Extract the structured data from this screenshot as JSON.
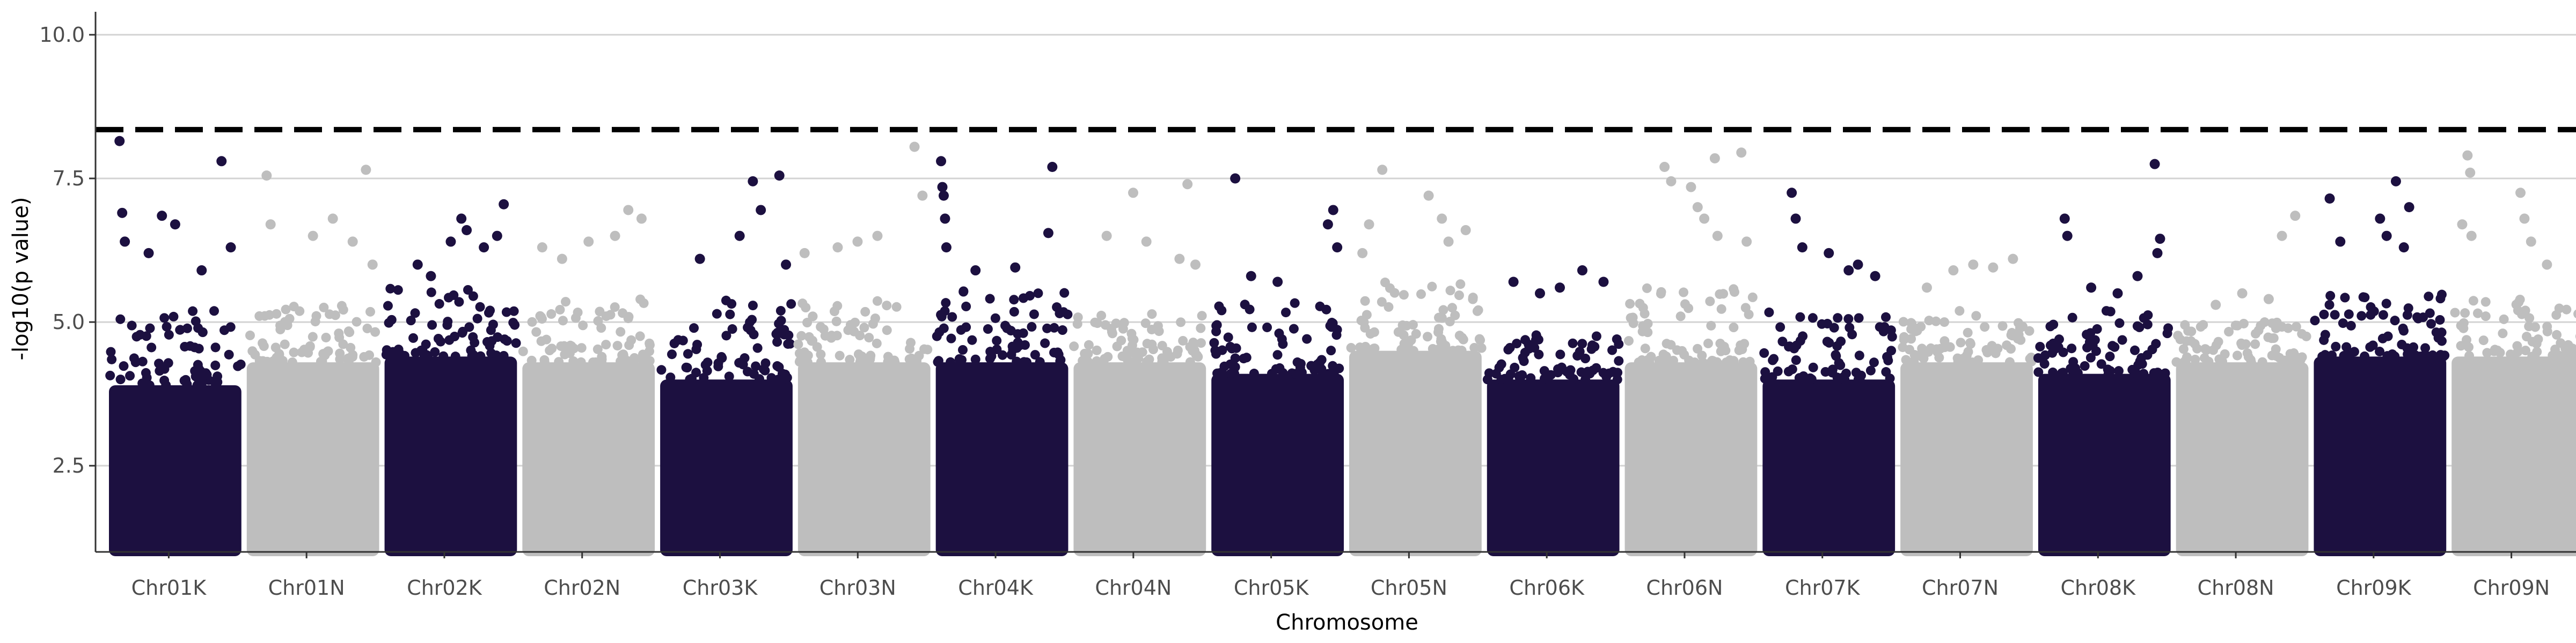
{
  "chart_data": {
    "type": "scatter",
    "title": "",
    "xlabel": "Chromosome",
    "ylabel": "-log10(p value)",
    "ylim": [
      1.0,
      10.4
    ],
    "yticks": [
      2.5,
      5.0,
      7.5,
      10.0
    ],
    "ytick_labels": [
      "2.5",
      "5.0",
      "7.5",
      "10.0"
    ],
    "grid": "horizontal major lines",
    "legend": "none",
    "threshold": {
      "value": 8.35,
      "style": "dashed",
      "color": "#000000"
    },
    "colors": {
      "odd": "#1c1040",
      "even": "#bebebe"
    },
    "categories": [
      "Chr01K",
      "Chr01N",
      "Chr02K",
      "Chr02N",
      "Chr03K",
      "Chr03N",
      "Chr04K",
      "Chr04N",
      "Chr05K",
      "Chr05N",
      "Chr06K",
      "Chr06N",
      "Chr07K",
      "Chr07N",
      "Chr08K",
      "Chr08N",
      "Chr09K",
      "Chr09N"
    ],
    "series": [
      {
        "chromosome": "Chr01K",
        "dense_max": 3.9,
        "cloud_max": 5.2,
        "points": [
          [
            0.08,
            8.15
          ],
          [
            0.1,
            6.9
          ],
          [
            0.12,
            6.4
          ],
          [
            0.3,
            6.2
          ],
          [
            0.4,
            6.85
          ],
          [
            0.5,
            6.7
          ],
          [
            0.85,
            7.8
          ],
          [
            0.92,
            6.3
          ],
          [
            0.7,
            5.9
          ]
        ]
      },
      {
        "chromosome": "Chr01N",
        "dense_max": 4.3,
        "cloud_max": 5.3,
        "points": [
          [
            0.15,
            7.55
          ],
          [
            0.18,
            6.7
          ],
          [
            0.5,
            6.5
          ],
          [
            0.65,
            6.8
          ],
          [
            0.8,
            6.4
          ],
          [
            0.9,
            7.65
          ],
          [
            0.95,
            6.0
          ]
        ]
      },
      {
        "chromosome": "Chr02K",
        "dense_max": 4.4,
        "cloud_max": 5.6,
        "points": [
          [
            0.25,
            6.0
          ],
          [
            0.35,
            5.8
          ],
          [
            0.5,
            6.4
          ],
          [
            0.58,
            6.8
          ],
          [
            0.62,
            6.6
          ],
          [
            0.75,
            6.3
          ],
          [
            0.85,
            6.5
          ],
          [
            0.9,
            7.05
          ]
        ]
      },
      {
        "chromosome": "Chr02N",
        "dense_max": 4.3,
        "cloud_max": 5.4,
        "points": [
          [
            0.15,
            6.3
          ],
          [
            0.3,
            6.1
          ],
          [
            0.5,
            6.4
          ],
          [
            0.7,
            6.5
          ],
          [
            0.8,
            6.95
          ],
          [
            0.9,
            6.8
          ]
        ]
      },
      {
        "chromosome": "Chr03K",
        "dense_max": 4.0,
        "cloud_max": 5.4,
        "points": [
          [
            0.3,
            6.1
          ],
          [
            0.6,
            6.5
          ],
          [
            0.7,
            7.45
          ],
          [
            0.76,
            6.95
          ],
          [
            0.9,
            7.55
          ],
          [
            0.95,
            6.0
          ]
        ]
      },
      {
        "chromosome": "Chr03N",
        "dense_max": 4.3,
        "cloud_max": 5.5,
        "points": [
          [
            0.05,
            6.2
          ],
          [
            0.3,
            6.3
          ],
          [
            0.45,
            6.4
          ],
          [
            0.6,
            6.5
          ],
          [
            0.88,
            8.05
          ],
          [
            0.94,
            7.2
          ]
        ]
      },
      {
        "chromosome": "Chr04K",
        "dense_max": 4.3,
        "cloud_max": 5.6,
        "points": [
          [
            0.04,
            7.8
          ],
          [
            0.05,
            7.35
          ],
          [
            0.06,
            7.2
          ],
          [
            0.07,
            6.8
          ],
          [
            0.08,
            6.3
          ],
          [
            0.3,
            5.9
          ],
          [
            0.6,
            5.95
          ],
          [
            0.85,
            6.55
          ],
          [
            0.88,
            7.7
          ]
        ]
      },
      {
        "chromosome": "Chr04N",
        "dense_max": 4.3,
        "cloud_max": 5.2,
        "points": [
          [
            0.25,
            6.5
          ],
          [
            0.45,
            7.25
          ],
          [
            0.55,
            6.4
          ],
          [
            0.8,
            6.1
          ],
          [
            0.86,
            7.4
          ],
          [
            0.92,
            6.0
          ]
        ]
      },
      {
        "chromosome": "Chr05K",
        "dense_max": 4.1,
        "cloud_max": 5.4,
        "points": [
          [
            0.18,
            7.5
          ],
          [
            0.3,
            5.8
          ],
          [
            0.5,
            5.7
          ],
          [
            0.88,
            6.7
          ],
          [
            0.92,
            6.95
          ],
          [
            0.95,
            6.3
          ]
        ]
      },
      {
        "chromosome": "Chr05N",
        "dense_max": 4.5,
        "cloud_max": 5.7,
        "points": [
          [
            0.1,
            6.2
          ],
          [
            0.15,
            6.7
          ],
          [
            0.25,
            7.65
          ],
          [
            0.6,
            7.2
          ],
          [
            0.7,
            6.8
          ],
          [
            0.75,
            6.4
          ],
          [
            0.88,
            6.6
          ]
        ]
      },
      {
        "chromosome": "Chr06K",
        "dense_max": 4.0,
        "cloud_max": 4.9,
        "points": [
          [
            0.2,
            5.7
          ],
          [
            0.4,
            5.5
          ],
          [
            0.55,
            5.6
          ],
          [
            0.72,
            5.9
          ],
          [
            0.88,
            5.7
          ]
        ]
      },
      {
        "chromosome": "Chr06N",
        "dense_max": 4.3,
        "cloud_max": 5.6,
        "points": [
          [
            0.3,
            7.7
          ],
          [
            0.35,
            7.45
          ],
          [
            0.5,
            7.35
          ],
          [
            0.55,
            7.0
          ],
          [
            0.6,
            6.8
          ],
          [
            0.68,
            7.85
          ],
          [
            0.7,
            6.5
          ],
          [
            0.88,
            7.95
          ],
          [
            0.92,
            6.4
          ]
        ]
      },
      {
        "chromosome": "Chr07K",
        "dense_max": 4.0,
        "cloud_max": 5.2,
        "points": [
          [
            0.22,
            7.25
          ],
          [
            0.25,
            6.8
          ],
          [
            0.3,
            6.3
          ],
          [
            0.5,
            6.2
          ],
          [
            0.65,
            5.9
          ],
          [
            0.72,
            6.0
          ],
          [
            0.85,
            5.8
          ]
        ]
      },
      {
        "chromosome": "Chr07N",
        "dense_max": 4.3,
        "cloud_max": 5.2,
        "points": [
          [
            0.2,
            5.6
          ],
          [
            0.4,
            5.9
          ],
          [
            0.55,
            6.0
          ],
          [
            0.7,
            5.95
          ],
          [
            0.85,
            6.1
          ]
        ]
      },
      {
        "chromosome": "Chr08K",
        "dense_max": 4.1,
        "cloud_max": 5.2,
        "points": [
          [
            0.2,
            6.8
          ],
          [
            0.22,
            6.5
          ],
          [
            0.4,
            5.6
          ],
          [
            0.6,
            5.5
          ],
          [
            0.75,
            5.8
          ],
          [
            0.88,
            7.75
          ],
          [
            0.92,
            6.45
          ],
          [
            0.9,
            6.2
          ]
        ]
      },
      {
        "chromosome": "Chr08N",
        "dense_max": 4.3,
        "cloud_max": 5.0,
        "points": [
          [
            0.3,
            5.3
          ],
          [
            0.5,
            5.5
          ],
          [
            0.7,
            5.4
          ],
          [
            0.8,
            6.5
          ],
          [
            0.9,
            6.85
          ]
        ]
      },
      {
        "chromosome": "Chr09K",
        "dense_max": 4.4,
        "cloud_max": 5.5,
        "points": [
          [
            0.12,
            7.15
          ],
          [
            0.2,
            6.4
          ],
          [
            0.5,
            6.8
          ],
          [
            0.55,
            6.5
          ],
          [
            0.62,
            7.45
          ],
          [
            0.68,
            6.3
          ],
          [
            0.72,
            7.0
          ]
        ]
      },
      {
        "chromosome": "Chr09N",
        "dense_max": 4.4,
        "cloud_max": 5.4,
        "points": [
          [
            0.08,
            6.7
          ],
          [
            0.12,
            7.9
          ],
          [
            0.14,
            7.6
          ],
          [
            0.15,
            6.5
          ],
          [
            0.52,
            7.25
          ],
          [
            0.55,
            6.8
          ],
          [
            0.6,
            6.4
          ],
          [
            0.72,
            6.0
          ]
        ]
      }
    ]
  }
}
